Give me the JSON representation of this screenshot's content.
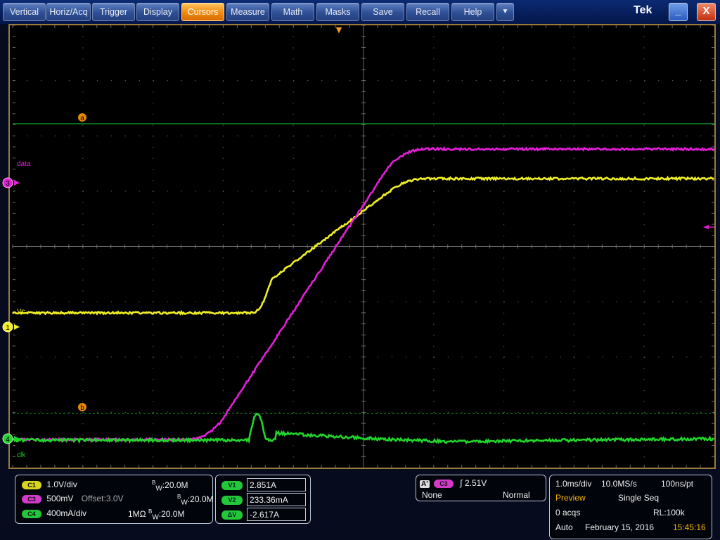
{
  "menu": {
    "items": [
      "Vertical",
      "Horiz/Acq",
      "Trigger",
      "Display",
      "Cursors",
      "Measure",
      "Math",
      "Masks",
      "Save",
      "Recall",
      "Help"
    ],
    "active": "Cursors",
    "more_label": "▼",
    "brand": "Tek",
    "minimize_label": "_",
    "close_label": "X"
  },
  "graticule": {
    "trigger_marker": "▼",
    "cursor_a_label": "a",
    "cursor_b_label": "b",
    "ch3_label": "data",
    "ch1_label": "Vc",
    "ch4_label": "clk",
    "ch3_marker": "3",
    "ch1_marker": "1",
    "ch4_marker": "4",
    "colors": {
      "ch1": "#f0ee25",
      "ch3": "#e21fd6",
      "ch4": "#22d32b",
      "cursor": "#10a830",
      "grid": "#5a5a5a"
    }
  },
  "channels": [
    {
      "chip": "C1",
      "scale": "1.0V/div",
      "offset": "",
      "impedance": "",
      "bw": "20.0M",
      "color": "#d8d520"
    },
    {
      "chip": "C3",
      "scale": "500mV",
      "offset": "Offset:3.0V",
      "impedance": "",
      "bw": "20.0M",
      "color": "#d43ac9"
    },
    {
      "chip": "C4",
      "scale": "400mA/div",
      "offset": "",
      "impedance": "1MΩ",
      "bw": "20.0M",
      "color": "#22c73a"
    }
  ],
  "bw_prefix": "W",
  "bw_b": "B",
  "cursors": {
    "v1_label": "V1",
    "v1_value": "2.851A",
    "v2_label": "V2",
    "v2_value": "233.36mA",
    "dv_label": "ΔV",
    "dv_value": "-2.617A"
  },
  "trigger": {
    "a_label": "A'",
    "source": "C3",
    "edge_symbol": "∫",
    "level": "2.51V",
    "coupling": "None",
    "mode": "Normal"
  },
  "acq": {
    "timebase": "1.0ms/div",
    "sample_rate": "10.0MS/s",
    "resolution": "100ns/pt",
    "preview": "Preview",
    "run_mode": "Single Seq",
    "acqs": "0 acqs",
    "record_length": "RL:100k",
    "trigger_mode": "Auto",
    "date": "February 15, 2016",
    "time": "15:45:16"
  }
}
